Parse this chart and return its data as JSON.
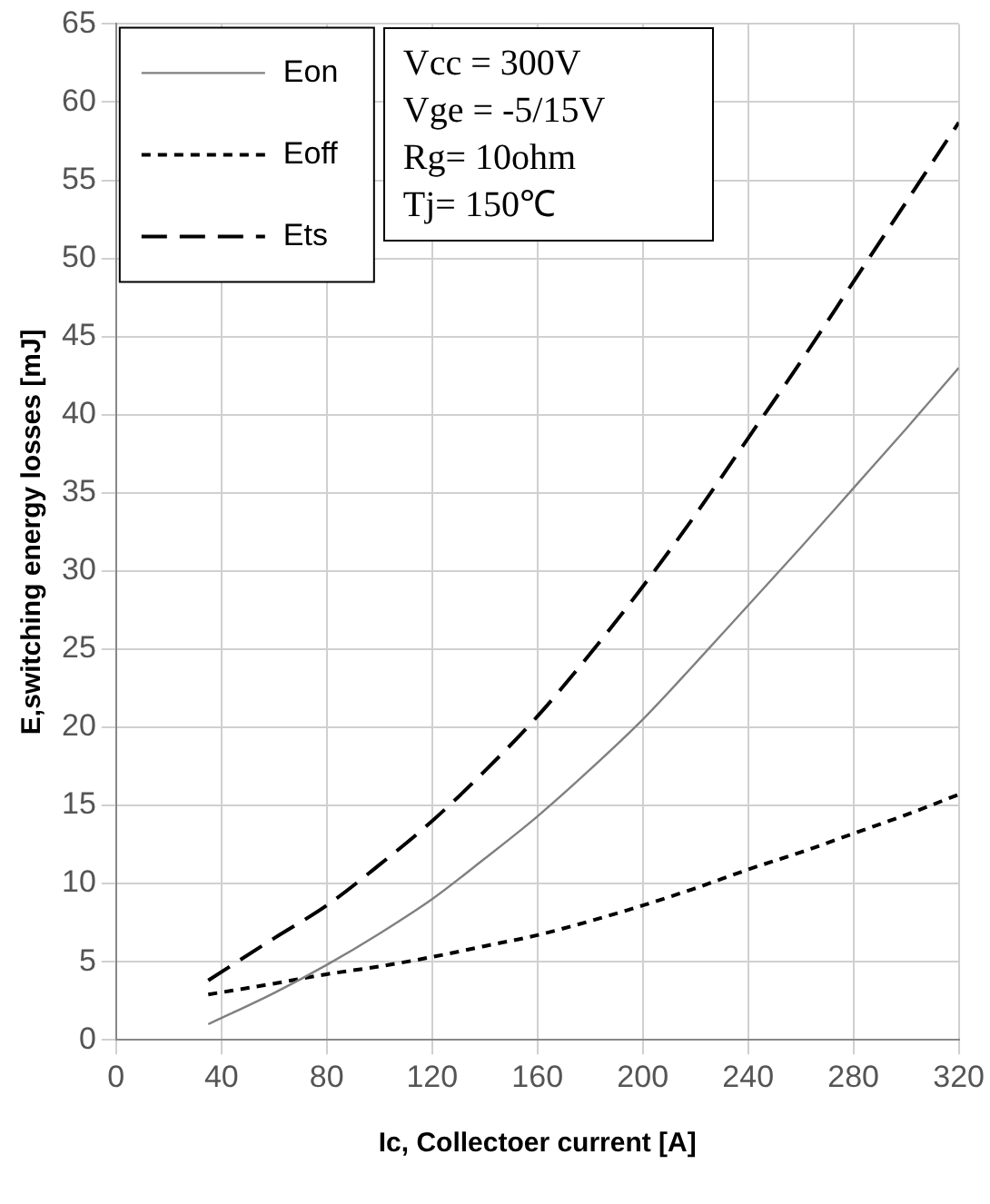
{
  "chart_data": {
    "type": "line",
    "xlabel": "Ic, Collectoer current [A]",
    "ylabel": "E,switching energy losses [mJ]",
    "xlim": [
      0,
      320
    ],
    "xticks": [
      0,
      40,
      80,
      120,
      160,
      200,
      240,
      280,
      320
    ],
    "ylim": [
      0,
      65
    ],
    "yticks": [
      0,
      5,
      10,
      15,
      20,
      25,
      30,
      35,
      40,
      45,
      50,
      55,
      60,
      65
    ],
    "grid": true,
    "legend": "top left",
    "marker": "none",
    "x": [
      35,
      60,
      80,
      100,
      120,
      140,
      160,
      180,
      200,
      220,
      240,
      260,
      280,
      300,
      320
    ],
    "series": [
      {
        "name": "Eon",
        "color": "#808080",
        "line_style": "solid",
        "values": [
          1,
          3,
          4.8,
          6.8,
          9,
          11.6,
          14.3,
          17.3,
          20.5,
          24.1,
          27.8,
          31.5,
          35.3,
          39.1,
          43
        ]
      },
      {
        "name": "Eoff",
        "color": "#000000",
        "line_style": "dotted",
        "values": [
          2.9,
          3.6,
          4.2,
          4.7,
          5.3,
          6,
          6.7,
          7.6,
          8.6,
          9.7,
          10.9,
          12,
          13.2,
          14.4,
          15.7
        ]
      },
      {
        "name": "Ets",
        "color": "#000000",
        "line_style": "dashed",
        "values": [
          3.8,
          6.5,
          8.6,
          11.2,
          14,
          17.2,
          20.7,
          24.7,
          29,
          33.6,
          38.5,
          43.4,
          48.5,
          53.6,
          58.7
        ]
      }
    ],
    "annotations": [
      "Vcc = 300V",
      "Vge = -5/15V",
      "Rg= 10ohm",
      "Tj= 150℃"
    ]
  }
}
